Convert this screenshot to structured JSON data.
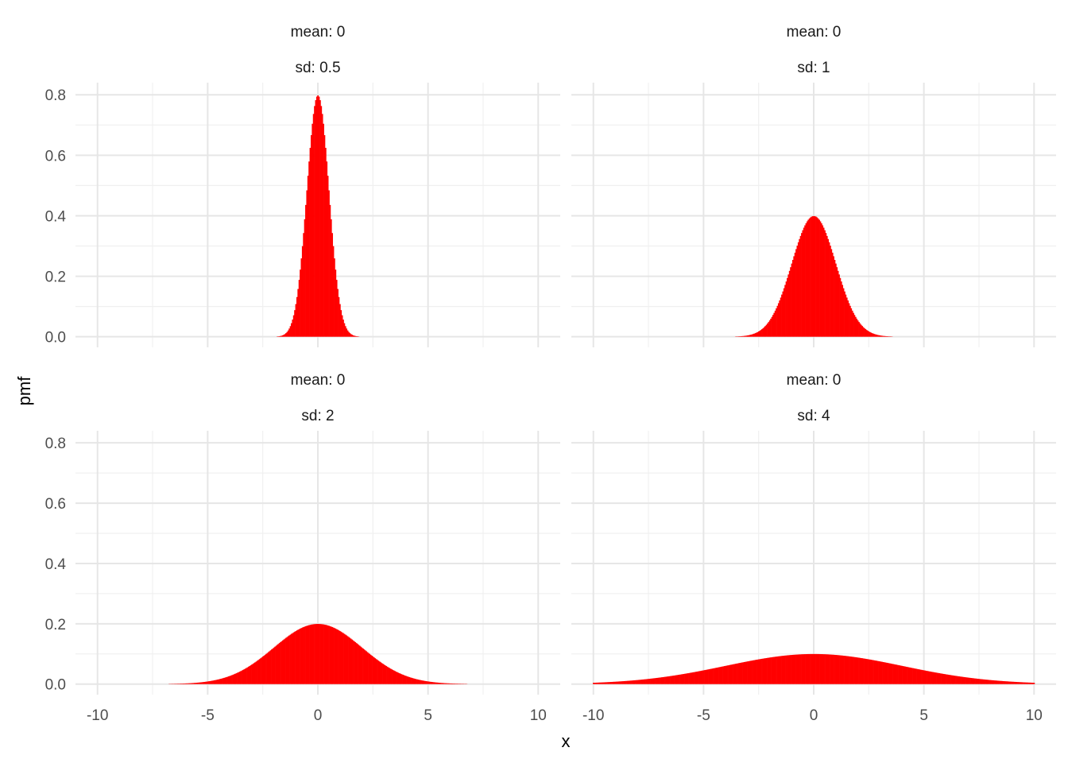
{
  "chart_data": {
    "type": "bar",
    "xlabel": "x",
    "ylabel": "pmf",
    "xlim": [
      -10,
      10
    ],
    "ylim": [
      0,
      0.8
    ],
    "x_ticks": [
      -10,
      -5,
      0,
      5,
      10
    ],
    "x_tick_labels": [
      "-10",
      "-5",
      "0",
      "5",
      "10"
    ],
    "y_ticks": [
      0,
      0.2,
      0.4,
      0.6,
      0.8
    ],
    "y_tick_labels": [
      "0.0",
      "0.2",
      "0.4",
      "0.6",
      "0.8"
    ],
    "bar_color": "#ff0000",
    "grid": true,
    "x_step": 0.05,
    "panels": [
      {
        "strip_mean": "mean: 0",
        "strip_sd": "sd: 0.5",
        "mean": 0,
        "sd": 0.5,
        "peak": 0.798
      },
      {
        "strip_mean": "mean: 0",
        "strip_sd": "sd: 1",
        "mean": 0,
        "sd": 1,
        "peak": 0.399
      },
      {
        "strip_mean": "mean: 0",
        "strip_sd": "sd: 2",
        "mean": 0,
        "sd": 2,
        "peak": 0.199
      },
      {
        "strip_mean": "mean: 0",
        "strip_sd": "sd: 4",
        "mean": 0,
        "sd": 4,
        "peak": 0.0997
      }
    ]
  }
}
